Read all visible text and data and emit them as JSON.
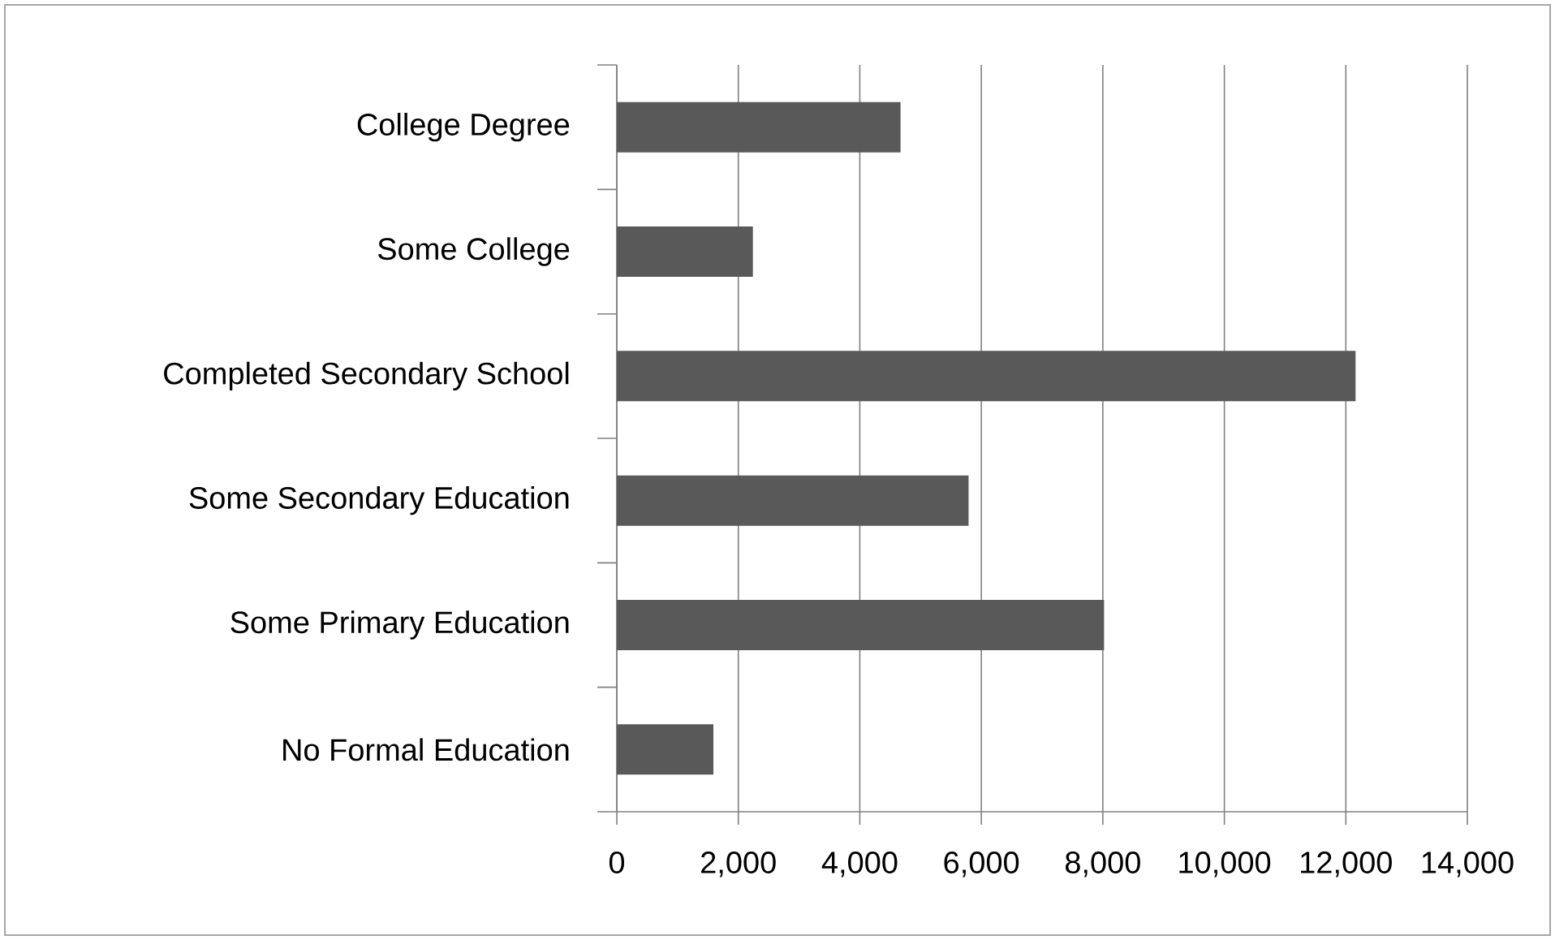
{
  "chart_data": {
    "type": "bar",
    "orientation": "horizontal",
    "categories": [
      "College Degree",
      "Some College",
      "Completed Secondary School",
      "Some Secondary Education",
      "Some Primary Education",
      "No Formal Education"
    ],
    "values": [
      4670,
      2240,
      12160,
      5790,
      8020,
      1590
    ],
    "color": "#595959",
    "xlim": [
      0,
      14000
    ],
    "xticks": [
      0,
      {
        "value": 2000,
        "label": "2,000"
      },
      {
        "value": 4000,
        "label": "4,000"
      },
      {
        "value": 6000,
        "label": "6,000"
      },
      {
        "value": 8000,
        "label": "8,000"
      },
      {
        "value": 10000,
        "label": "10,000"
      },
      {
        "value": 12000,
        "label": "12,000"
      },
      {
        "value": 14000,
        "label": "14,000"
      }
    ],
    "grid": "x"
  }
}
